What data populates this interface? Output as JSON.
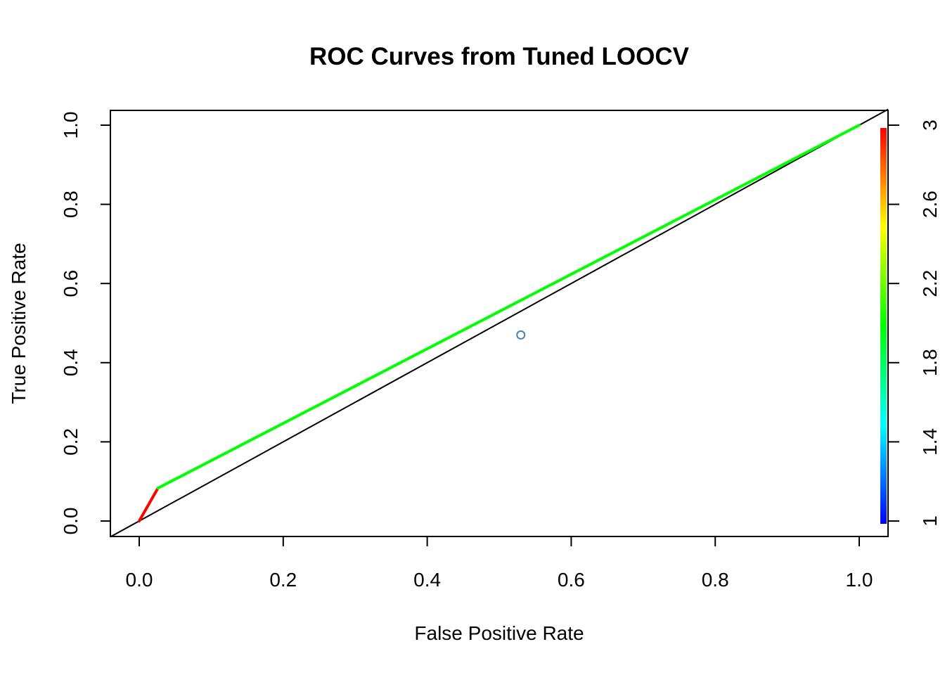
{
  "chart_data": {
    "type": "line",
    "title": "ROC Curves from Tuned LOOCV",
    "xlabel": "False Positive Rate",
    "ylabel": "True Positive Rate",
    "xlim": [
      0.0,
      1.0
    ],
    "ylim": [
      0.0,
      1.0
    ],
    "x_ticks": [
      "0.0",
      "0.2",
      "0.4",
      "0.6",
      "0.8",
      "1.0"
    ],
    "y_ticks": [
      "0.0",
      "0.2",
      "0.4",
      "0.6",
      "0.8",
      "1.0"
    ],
    "grid": false,
    "legend": "none",
    "roc_curve": {
      "points": [
        [
          0.0,
          0.0
        ],
        [
          0.026,
          0.083
        ],
        [
          1.0,
          1.0
        ]
      ],
      "segment_colors": [
        "#ff0000",
        "#00ff00"
      ]
    },
    "diagonal": {
      "from": [
        0.0,
        0.0
      ],
      "to": [
        1.0,
        1.0
      ],
      "color": "#000000"
    },
    "point": {
      "x": 0.53,
      "y": 0.47,
      "color": "#4682b4"
    },
    "colorbar": {
      "range": [
        1,
        3
      ],
      "ticks": [
        "1",
        "1.4",
        "1.8",
        "2.2",
        "2.6",
        "3"
      ],
      "colors": [
        "#0000ff",
        "#00ffff",
        "#00ff00",
        "#ffff00",
        "#ff0000"
      ]
    }
  }
}
